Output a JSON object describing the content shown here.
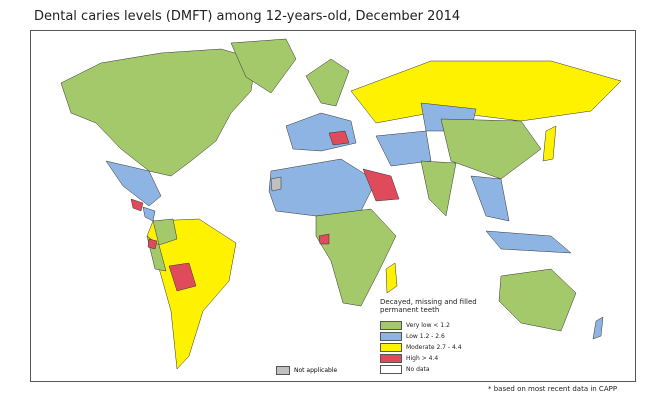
{
  "title": "Dental caries levels (DMFT) among 12-years-old, December 2014",
  "legend": {
    "title": "Decayed, missing and filled permanent teeth",
    "items": [
      {
        "label": "Very low < 1.2",
        "color": "#a3c96b"
      },
      {
        "label": "Low 1.2 - 2.6",
        "color": "#8db4e2"
      },
      {
        "label": "Moderate 2.7 - 4.4",
        "color": "#fff200"
      },
      {
        "label": "High > 4.4",
        "color": "#e04b5c"
      },
      {
        "label": "No data",
        "color": "#ffffff"
      }
    ]
  },
  "not_applicable": "Not applicable",
  "footnote": "* based on most recent data in CAPP"
}
